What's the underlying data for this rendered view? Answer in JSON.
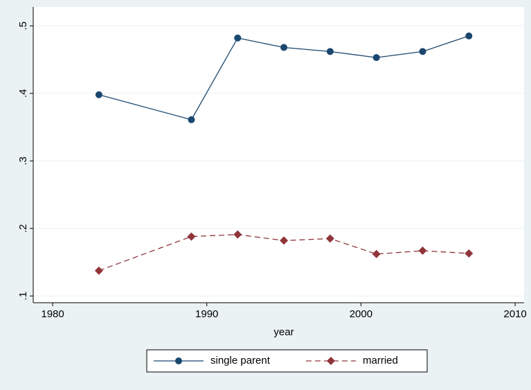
{
  "chart_data": {
    "type": "line",
    "x": [
      1983,
      1989,
      1992,
      1995,
      1998,
      2001,
      2004,
      2007
    ],
    "x_label": "year",
    "series": [
      {
        "name": "single parent",
        "color": "#1a476f",
        "line_style": "solid",
        "marker": "circle",
        "values": [
          0.398,
          0.361,
          0.482,
          0.468,
          0.462,
          0.453,
          0.462,
          0.485
        ]
      },
      {
        "name": "married",
        "color": "#90353b",
        "line_style": "dashed",
        "marker": "diamond",
        "values": [
          0.1375,
          0.188,
          0.191,
          0.182,
          0.185,
          0.162,
          0.167,
          0.163
        ]
      }
    ],
    "xlim": [
      1978.74,
      2010.58
    ],
    "xticks": [
      1980,
      1990,
      2000,
      2010
    ],
    "ylim": [
      0.09,
      0.528
    ],
    "yticks": [
      {
        "value": 0.1,
        "label": ".1"
      },
      {
        "value": 0.2,
        "label": ".2"
      },
      {
        "value": 0.3,
        "label": ".3"
      },
      {
        "value": 0.4,
        "label": ".4"
      },
      {
        "value": 0.5,
        "label": ".5"
      }
    ],
    "grid": true,
    "legend": "bottom"
  }
}
